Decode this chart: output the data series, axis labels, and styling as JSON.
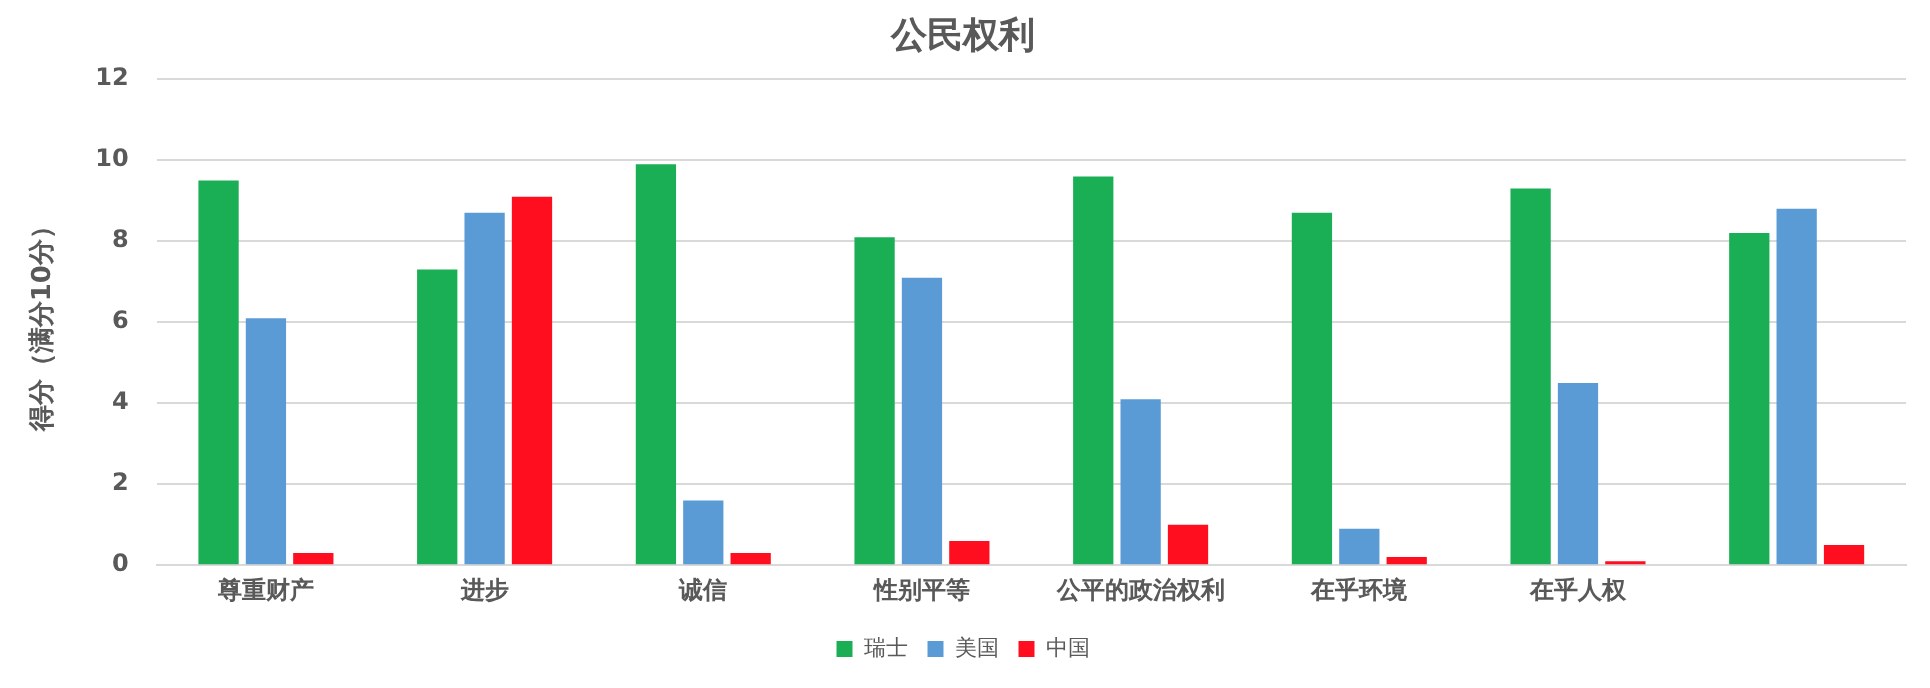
{
  "chart_data": {
    "type": "bar",
    "title": "公民权利",
    "ylabel": "得分（满分10分）",
    "categories": [
      "尊重财产",
      "进步",
      "诚信",
      "性别平等",
      "公平的政治权利",
      "在乎环境",
      "在乎人权",
      null
    ],
    "series": [
      {
        "name": "瑞士",
        "color": "#1aaf54",
        "values": [
          9.5,
          7.3,
          9.9,
          8.1,
          9.6,
          8.7,
          9.3,
          8.2
        ]
      },
      {
        "name": "美国",
        "color": "#5b9bd5",
        "values": [
          6.1,
          8.7,
          1.6,
          7.1,
          4.1,
          0.9,
          4.5,
          8.8
        ]
      },
      {
        "name": "中国",
        "color": "#fe0e1e",
        "values": [
          0.3,
          9.1,
          0.3,
          0.6,
          1.0,
          0.2,
          0.1,
          0.5
        ]
      }
    ],
    "ylim": [
      0,
      12
    ],
    "yticks": [
      0,
      2,
      4,
      6,
      8,
      10,
      12
    ],
    "grid": "y",
    "legend": "bottom"
  }
}
